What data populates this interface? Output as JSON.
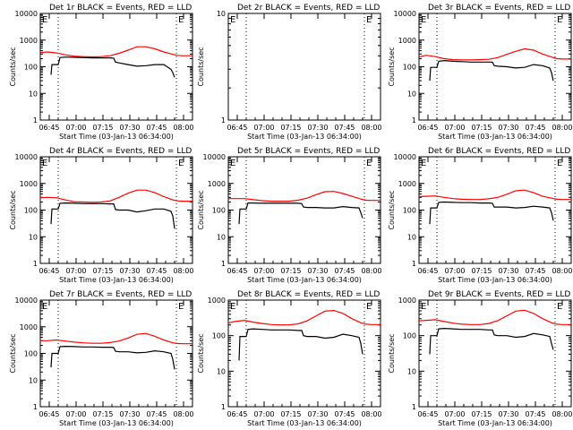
{
  "colors": {
    "events": "#000000",
    "lld": "#ff0000",
    "axis": "#000000",
    "background": "#ffffff"
  },
  "common": {
    "x_tick_labels": [
      "06:45",
      "07:00",
      "07:15",
      "07:30",
      "07:45",
      "08:00"
    ],
    "y_tick_labels": [
      "1",
      "10",
      "100",
      "1000",
      "10000"
    ],
    "ylabel": "Counts/sec",
    "xlabel": "Start Time (03-Jan-13 06:34:00)",
    "corner_marks": [
      "E",
      "E"
    ]
  },
  "chart_data": [
    {
      "type": "line",
      "title": "Det 1r BLACK = Events, RED = LLD",
      "xlabel": "Start Time (03-Jan-13 06:34:00)",
      "ylabel": "Counts/sec",
      "x_unit": "minutes since 06:34:00",
      "xlim": [
        6,
        91
      ],
      "ylim": [
        1,
        10000
      ],
      "yscale": "log",
      "dotted_vlines": [
        16,
        82
      ],
      "series": [
        {
          "color": "#ff0000",
          "x": [
            6,
            10,
            15,
            20,
            25,
            30,
            35,
            40,
            45,
            50,
            55,
            60,
            65,
            70,
            75,
            80,
            82,
            85,
            91
          ],
          "y": [
            340,
            360,
            330,
            280,
            250,
            240,
            235,
            240,
            260,
            320,
            420,
            560,
            560,
            470,
            360,
            290,
            270,
            260,
            260
          ]
        },
        {
          "color": "#000000",
          "x": [
            12,
            12.5,
            13,
            16,
            17,
            20,
            25,
            30,
            35,
            40,
            45,
            47,
            48,
            50,
            55,
            60,
            65,
            70,
            75,
            79,
            80,
            81
          ],
          "y": [
            50,
            120,
            120,
            120,
            220,
            230,
            225,
            220,
            215,
            215,
            215,
            210,
            150,
            140,
            120,
            105,
            110,
            120,
            120,
            80,
            60,
            40
          ]
        }
      ]
    },
    {
      "type": "line",
      "title": "Det 2r BLACK = Events, RED = LLD",
      "xlabel": "Start Time (03-Jan-13 06:34:00)",
      "ylabel": "Counts/sec",
      "x_unit": "minutes since 06:34:00",
      "xlim": [
        6,
        91
      ],
      "ylim": [
        1,
        10
      ],
      "yscale": "log",
      "y_tick_labels": [
        "1",
        "10"
      ],
      "dotted_vlines": [
        16,
        82
      ],
      "series": []
    },
    {
      "type": "line",
      "title": "Det 3r BLACK = Events, RED = LLD",
      "xlabel": "Start Time (03-Jan-13 06:34:00)",
      "ylabel": "Counts/sec",
      "x_unit": "minutes since 06:34:00",
      "xlim": [
        6,
        91
      ],
      "ylim": [
        1,
        10000
      ],
      "yscale": "log",
      "dotted_vlines": [
        16,
        82
      ],
      "series": [
        {
          "color": "#ff0000",
          "x": [
            6,
            10,
            15,
            20,
            25,
            30,
            35,
            40,
            45,
            50,
            55,
            60,
            65,
            70,
            75,
            80,
            83,
            86,
            91
          ],
          "y": [
            230,
            270,
            240,
            200,
            185,
            180,
            180,
            185,
            190,
            220,
            290,
            380,
            470,
            420,
            300,
            230,
            200,
            195,
            195
          ]
        },
        {
          "color": "#000000",
          "x": [
            12,
            12.5,
            13,
            16,
            17,
            20,
            25,
            30,
            35,
            40,
            45,
            47,
            48,
            50,
            55,
            60,
            65,
            70,
            75,
            79,
            80,
            81
          ],
          "y": [
            30,
            95,
            95,
            95,
            160,
            170,
            160,
            155,
            150,
            150,
            150,
            150,
            110,
            105,
            100,
            90,
            95,
            120,
            110,
            90,
            60,
            30
          ]
        }
      ]
    },
    {
      "type": "line",
      "title": "Det 4r BLACK = Events, RED = LLD",
      "xlabel": "Start Time (03-Jan-13 06:34:00)",
      "ylabel": "Counts/sec",
      "x_unit": "minutes since 06:34:00",
      "xlim": [
        6,
        91
      ],
      "ylim": [
        1,
        10000
      ],
      "yscale": "log",
      "dotted_vlines": [
        16,
        82
      ],
      "series": [
        {
          "color": "#ff0000",
          "x": [
            6,
            10,
            15,
            20,
            25,
            30,
            35,
            40,
            45,
            50,
            55,
            60,
            65,
            70,
            75,
            80,
            83,
            86,
            91
          ],
          "y": [
            290,
            300,
            290,
            240,
            205,
            200,
            195,
            200,
            220,
            300,
            430,
            560,
            560,
            450,
            320,
            240,
            220,
            215,
            215
          ]
        },
        {
          "color": "#000000",
          "x": [
            12,
            12.5,
            13,
            16,
            17,
            20,
            25,
            30,
            35,
            40,
            45,
            47,
            48,
            50,
            55,
            60,
            65,
            70,
            75,
            79,
            80,
            81
          ],
          "y": [
            30,
            110,
            110,
            110,
            180,
            185,
            180,
            175,
            175,
            175,
            170,
            170,
            105,
            100,
            100,
            85,
            95,
            110,
            110,
            90,
            60,
            20
          ]
        }
      ]
    },
    {
      "type": "line",
      "title": "Det 5r BLACK = Events, RED = LLD",
      "xlabel": "Start Time (03-Jan-13 06:34:00)",
      "ylabel": "Counts/sec",
      "x_unit": "minutes since 06:34:00",
      "xlim": [
        6,
        91
      ],
      "ylim": [
        1,
        10000
      ],
      "yscale": "log",
      "dotted_vlines": [
        16,
        82
      ],
      "series": [
        {
          "color": "#ff0000",
          "x": [
            6,
            10,
            15,
            20,
            25,
            30,
            35,
            40,
            45,
            50,
            55,
            60,
            65,
            70,
            75,
            80,
            83,
            86,
            91
          ],
          "y": [
            270,
            270,
            270,
            245,
            225,
            215,
            215,
            215,
            235,
            280,
            380,
            490,
            500,
            420,
            330,
            260,
            235,
            230,
            230
          ]
        },
        {
          "color": "#000000",
          "x": [
            12,
            12.5,
            13,
            16,
            17,
            20,
            25,
            30,
            35,
            40,
            45,
            47,
            48,
            50,
            55,
            60,
            65,
            70,
            75,
            79,
            80,
            81
          ],
          "y": [
            30,
            110,
            110,
            110,
            185,
            185,
            180,
            180,
            180,
            180,
            180,
            175,
            130,
            125,
            125,
            120,
            120,
            135,
            125,
            120,
            80,
            50
          ]
        }
      ]
    },
    {
      "type": "line",
      "title": "Det 6r BLACK = Events, RED = LLD",
      "xlabel": "Start Time (03-Jan-13 06:34:00)",
      "ylabel": "Counts/sec",
      "x_unit": "minutes since 06:34:00",
      "xlim": [
        6,
        91
      ],
      "ylim": [
        1,
        10000
      ],
      "yscale": "log",
      "dotted_vlines": [
        16,
        82
      ],
      "series": [
        {
          "color": "#ff0000",
          "x": [
            6,
            10,
            15,
            20,
            25,
            30,
            35,
            40,
            45,
            50,
            55,
            60,
            65,
            70,
            75,
            80,
            83,
            86,
            91
          ],
          "y": [
            320,
            330,
            340,
            300,
            270,
            255,
            250,
            250,
            265,
            300,
            390,
            530,
            560,
            450,
            330,
            280,
            255,
            250,
            250
          ]
        },
        {
          "color": "#000000",
          "x": [
            12,
            12.5,
            13,
            16,
            17,
            20,
            25,
            30,
            35,
            40,
            45,
            47,
            48,
            50,
            55,
            60,
            65,
            70,
            75,
            79,
            80,
            81
          ],
          "y": [
            30,
            120,
            120,
            120,
            195,
            200,
            195,
            190,
            190,
            185,
            185,
            180,
            130,
            130,
            130,
            120,
            125,
            140,
            130,
            120,
            80,
            40
          ]
        }
      ]
    },
    {
      "type": "line",
      "title": "Det 7r BLACK = Events, RED = LLD",
      "xlabel": "Start Time (03-Jan-13 06:34:00)",
      "ylabel": "Counts/sec",
      "x_unit": "minutes since 06:34:00",
      "xlim": [
        6,
        91
      ],
      "ylim": [
        1,
        10000
      ],
      "yscale": "log",
      "dotted_vlines": [
        16,
        82
      ],
      "series": [
        {
          "color": "#ff0000",
          "x": [
            6,
            10,
            15,
            20,
            25,
            30,
            35,
            40,
            45,
            50,
            55,
            60,
            65,
            70,
            75,
            80,
            83,
            86,
            91
          ],
          "y": [
            300,
            300,
            320,
            290,
            265,
            250,
            240,
            240,
            255,
            290,
            380,
            520,
            560,
            440,
            320,
            250,
            235,
            230,
            230
          ]
        },
        {
          "color": "#000000",
          "x": [
            12,
            12.5,
            13,
            16,
            17,
            20,
            25,
            30,
            35,
            40,
            45,
            47,
            48,
            50,
            55,
            60,
            65,
            70,
            75,
            79,
            80,
            81
          ],
          "y": [
            30,
            100,
            100,
            100,
            180,
            185,
            180,
            175,
            175,
            170,
            170,
            165,
            120,
            115,
            115,
            105,
            110,
            125,
            115,
            100,
            60,
            25
          ]
        }
      ]
    },
    {
      "type": "line",
      "title": "Det 8r BLACK = Events, RED = LLD",
      "xlabel": "Start Time (03-Jan-13 06:34:00)",
      "ylabel": "Counts/sec",
      "x_unit": "minutes since 06:34:00",
      "xlim": [
        6,
        91
      ],
      "ylim": [
        1,
        1000
      ],
      "yscale": "log",
      "y_tick_labels": [
        "1",
        "10",
        "100",
        "1000"
      ],
      "dotted_vlines": [
        16,
        82
      ],
      "series": [
        {
          "color": "#ff0000",
          "x": [
            6,
            10,
            15,
            20,
            25,
            30,
            35,
            40,
            45,
            50,
            55,
            60,
            65,
            70,
            75,
            80,
            83,
            86,
            91
          ],
          "y": [
            230,
            250,
            270,
            240,
            220,
            205,
            200,
            200,
            215,
            260,
            360,
            490,
            510,
            420,
            300,
            230,
            210,
            205,
            205
          ]
        },
        {
          "color": "#000000",
          "x": [
            12,
            12.5,
            13,
            16,
            17,
            20,
            25,
            30,
            35,
            40,
            45,
            47,
            48,
            50,
            55,
            60,
            65,
            70,
            75,
            79,
            80,
            81
          ],
          "y": [
            20,
            95,
            95,
            95,
            150,
            155,
            150,
            145,
            145,
            145,
            140,
            140,
            100,
            95,
            95,
            85,
            90,
            110,
            100,
            90,
            60,
            30
          ]
        }
      ]
    },
    {
      "type": "line",
      "title": "Det 9r BLACK = Events, RED = LLD",
      "xlabel": "Start Time (03-Jan-13 06:34:00)",
      "ylabel": "Counts/sec",
      "x_unit": "minutes since 06:34:00",
      "xlim": [
        6,
        91
      ],
      "ylim": [
        1,
        1000
      ],
      "yscale": "log",
      "y_tick_labels": [
        "1",
        "10",
        "100",
        "1000"
      ],
      "dotted_vlines": [
        16,
        82
      ],
      "series": [
        {
          "color": "#ff0000",
          "x": [
            6,
            10,
            15,
            20,
            25,
            30,
            35,
            40,
            45,
            50,
            55,
            60,
            65,
            70,
            75,
            80,
            83,
            86,
            91
          ],
          "y": [
            260,
            270,
            280,
            250,
            225,
            210,
            205,
            205,
            220,
            265,
            360,
            490,
            520,
            420,
            300,
            230,
            210,
            205,
            205
          ]
        },
        {
          "color": "#000000",
          "x": [
            12,
            12.5,
            13,
            16,
            17,
            20,
            25,
            30,
            35,
            40,
            45,
            47,
            48,
            50,
            55,
            60,
            65,
            70,
            75,
            79,
            80,
            81
          ],
          "y": [
            30,
            100,
            100,
            100,
            155,
            160,
            155,
            150,
            150,
            150,
            145,
            145,
            105,
            100,
            100,
            90,
            95,
            115,
            105,
            95,
            60,
            40
          ]
        }
      ]
    }
  ]
}
